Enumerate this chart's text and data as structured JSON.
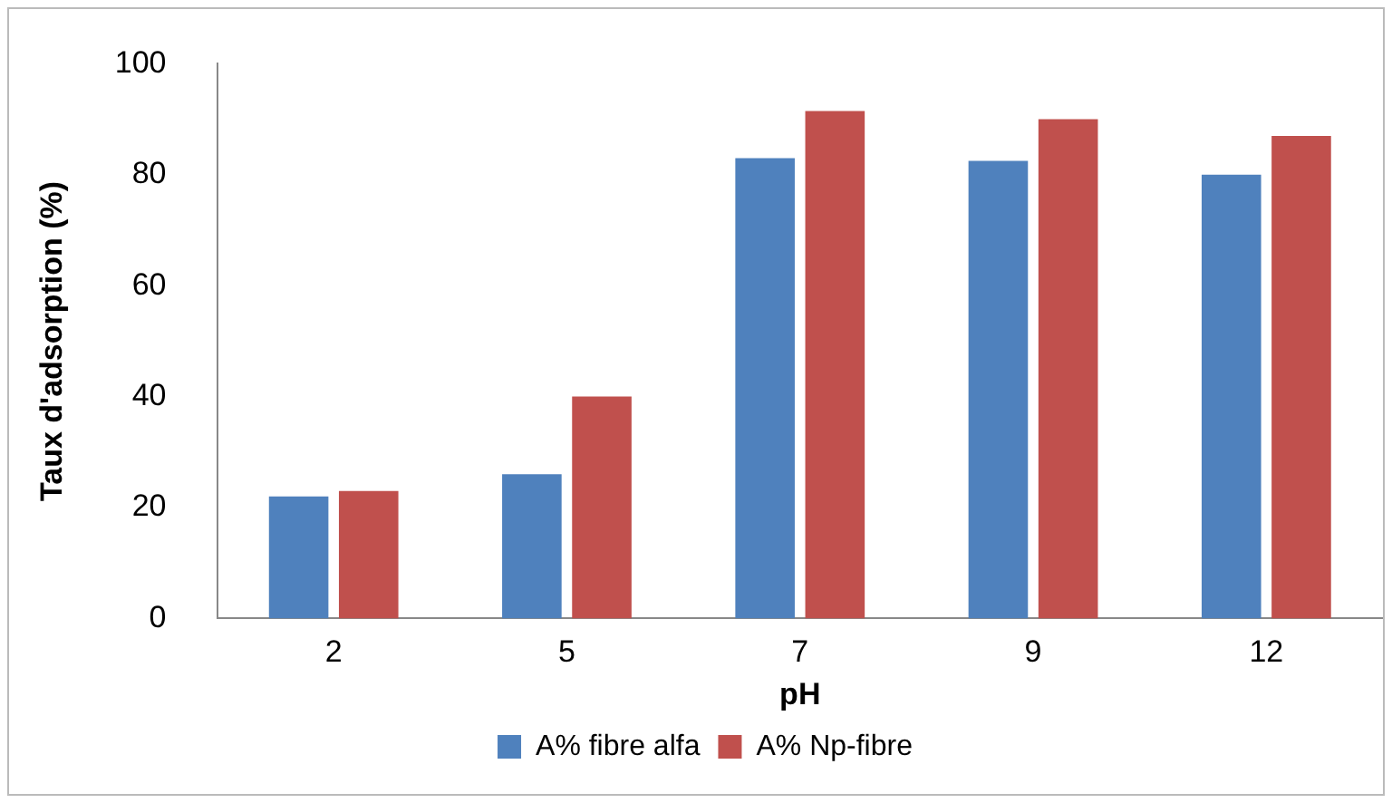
{
  "chart_data": {
    "type": "bar",
    "xlabel": "pH",
    "ylabel": "Taux d'adsorption (%)",
    "categories": [
      "2",
      "5",
      "7",
      "9",
      "12"
    ],
    "series": [
      {
        "name": "A% fibre alfa",
        "color": "#4f81bd",
        "values": [
          22,
          26,
          83,
          82.5,
          80
        ]
      },
      {
        "name": "A% Np-fibre",
        "color": "#c0504d",
        "values": [
          23,
          40,
          91.5,
          90,
          87
        ]
      }
    ],
    "ylim": [
      0,
      100
    ],
    "yticks": [
      0,
      20,
      40,
      60,
      80,
      100
    ],
    "grid": false,
    "legend": "bottom"
  }
}
